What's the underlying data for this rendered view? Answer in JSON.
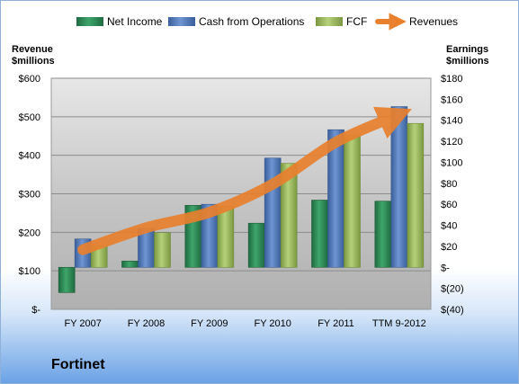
{
  "company_label": "Fortinet",
  "chart_data": {
    "type": "bar",
    "categories": [
      "FY 2007",
      "FY 2008",
      "FY 2009",
      "FY 2010",
      "FY 2011",
      "TTM 9-2012"
    ],
    "series": [
      {
        "name": "Net Income",
        "axis": "right",
        "color": "#2e8b57",
        "values": [
          -24,
          6,
          59,
          42,
          64,
          63
        ]
      },
      {
        "name": "Cash from Operations",
        "axis": "right",
        "color": "#4f78b9",
        "values": [
          27,
          37,
          60,
          104,
          131,
          153
        ]
      },
      {
        "name": "FCF",
        "axis": "right",
        "color": "#9bbb59",
        "values": [
          20,
          33,
          58,
          99,
          126,
          137
        ]
      },
      {
        "name": "Revenues",
        "axis": "left",
        "type": "line",
        "color": "#e8802e",
        "values": [
          155,
          212,
          252,
          325,
          434,
          506
        ]
      }
    ],
    "left_axis": {
      "title_line1": "Revenue",
      "title_line2": "$millions",
      "ylim": [
        0,
        600
      ],
      "ticks": [
        {
          "value": 0,
          "label": "$-"
        },
        {
          "value": 100,
          "label": "$100"
        },
        {
          "value": 200,
          "label": "$200"
        },
        {
          "value": 300,
          "label": "$300"
        },
        {
          "value": 400,
          "label": "$400"
        },
        {
          "value": 500,
          "label": "$500"
        },
        {
          "value": 600,
          "label": "$600"
        }
      ]
    },
    "right_axis": {
      "title_line1": "Earnings",
      "title_line2": "$millions",
      "ylim": [
        -40,
        180
      ],
      "ticks": [
        {
          "value": -40,
          "label": "$(40)"
        },
        {
          "value": -20,
          "label": "$(20)"
        },
        {
          "value": 0,
          "label": "$-"
        },
        {
          "value": 20,
          "label": "$20"
        },
        {
          "value": 40,
          "label": "$40"
        },
        {
          "value": 60,
          "label": "$60"
        },
        {
          "value": 80,
          "label": "$80"
        },
        {
          "value": 100,
          "label": "$100"
        },
        {
          "value": 120,
          "label": "$120"
        },
        {
          "value": 140,
          "label": "$140"
        },
        {
          "value": 160,
          "label": "$160"
        },
        {
          "value": 180,
          "label": "$180"
        }
      ]
    },
    "grid": true,
    "legend_position": "top"
  }
}
